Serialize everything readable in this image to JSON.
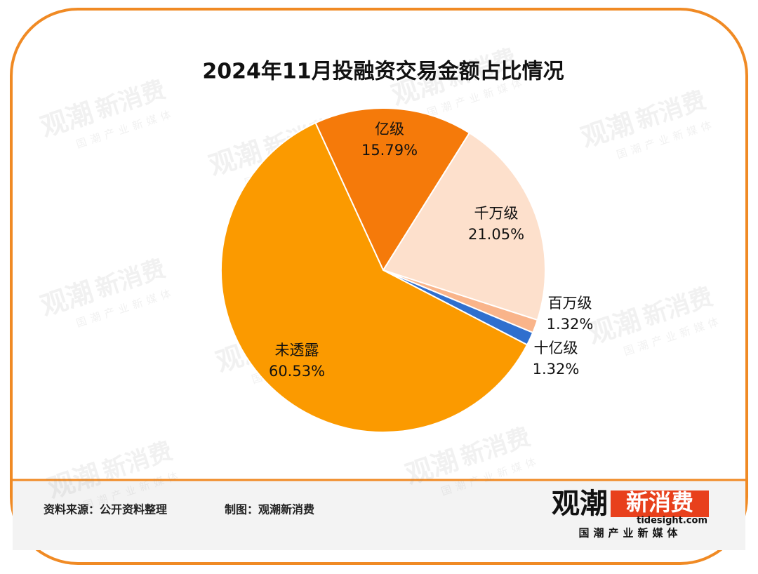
{
  "chart_data": {
    "type": "pie",
    "title": "2024年11月投融资交易金额占比情况",
    "categories": [
      "亿级",
      "千万级",
      "百万级",
      "十亿级",
      "未透露"
    ],
    "values": [
      15.79,
      21.05,
      1.32,
      1.32,
      60.53
    ],
    "value_labels": [
      "15.79%",
      "21.05%",
      "1.32%",
      "1.32%",
      "60.53%"
    ],
    "colors": [
      "#f57a0a",
      "#fde0cc",
      "#f9b48a",
      "#2f6fce",
      "#fb9a00"
    ]
  },
  "footer": {
    "source": "资料来源：公开资料整理",
    "credit": "制图：观潮新消费"
  },
  "logo": {
    "brand_black": "观潮",
    "brand_box": "新消费",
    "site": "tidesight.com",
    "tagline": "国潮产业新媒体"
  }
}
